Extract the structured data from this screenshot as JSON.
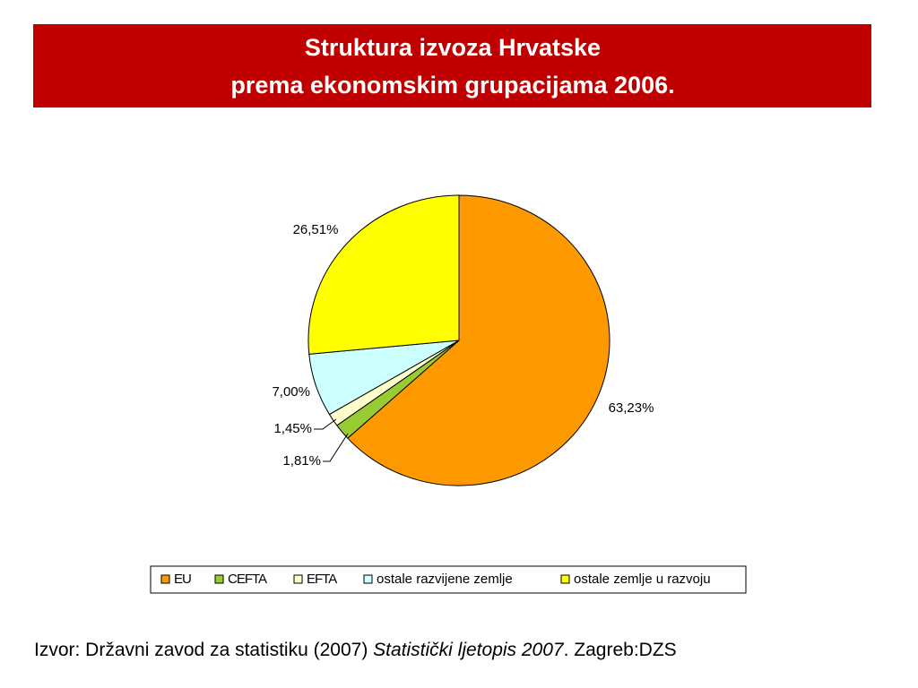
{
  "chart_data": {
    "type": "pie",
    "title": [
      "Struktura izvoza Hrvatske",
      "prema ekonomskim grupacijama 2006."
    ],
    "categories": [
      "EU",
      "CEFTA",
      "EFTA",
      "ostale razvijene zemlje",
      "ostale zemlje u razvoju"
    ],
    "values": [
      63.23,
      1.81,
      1.45,
      7.0,
      26.51
    ],
    "value_labels": [
      "63,23%",
      "1,81%",
      "1,45%",
      "7,00%",
      "26,51%"
    ],
    "colors": [
      "#ff9900",
      "#99cc33",
      "#ffffcc",
      "#ccffff",
      "#ffff00"
    ],
    "legend": "bottom"
  },
  "source": [
    "Izvor: Državni zavod za statistiku (2007)",
    "Statistički ljetopis 2007",
    ". Zagreb:DZS"
  ]
}
